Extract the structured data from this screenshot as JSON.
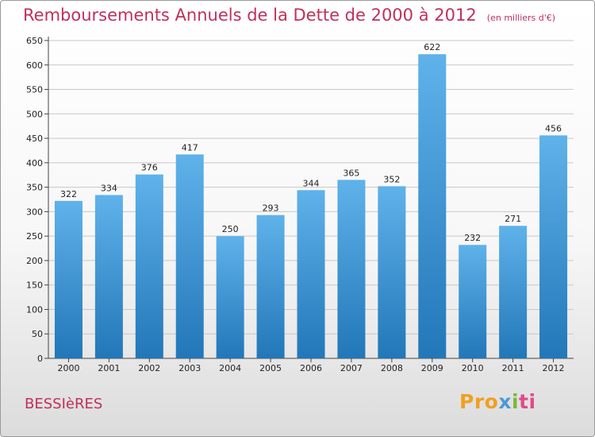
{
  "header": {
    "title": "Remboursements Annuels de la Dette de 2000 à 2012",
    "unit": "(en milliers d'€)"
  },
  "footer": {
    "commune": "BESSIèRES",
    "logo": "Proxiti"
  },
  "colors": {
    "bar_top": "#5fb2ea",
    "bar_bottom": "#2277b8",
    "title": "#c0305a",
    "grid": "#c8c8c8"
  },
  "chart_data": {
    "type": "bar",
    "title": "Remboursements Annuels de la Dette de 2000 à 2012",
    "xlabel": "",
    "ylabel": "",
    "categories": [
      "2000",
      "2001",
      "2002",
      "2003",
      "2004",
      "2005",
      "2006",
      "2007",
      "2008",
      "2009",
      "2010",
      "2011",
      "2012"
    ],
    "values": [
      322,
      334,
      376,
      417,
      250,
      293,
      344,
      365,
      352,
      622,
      232,
      271,
      456
    ],
    "ylim": [
      0,
      650
    ],
    "yticks": [
      0,
      50,
      100,
      150,
      200,
      250,
      300,
      350,
      400,
      450,
      500,
      550,
      600,
      650
    ],
    "grid": true,
    "legend": "none"
  }
}
